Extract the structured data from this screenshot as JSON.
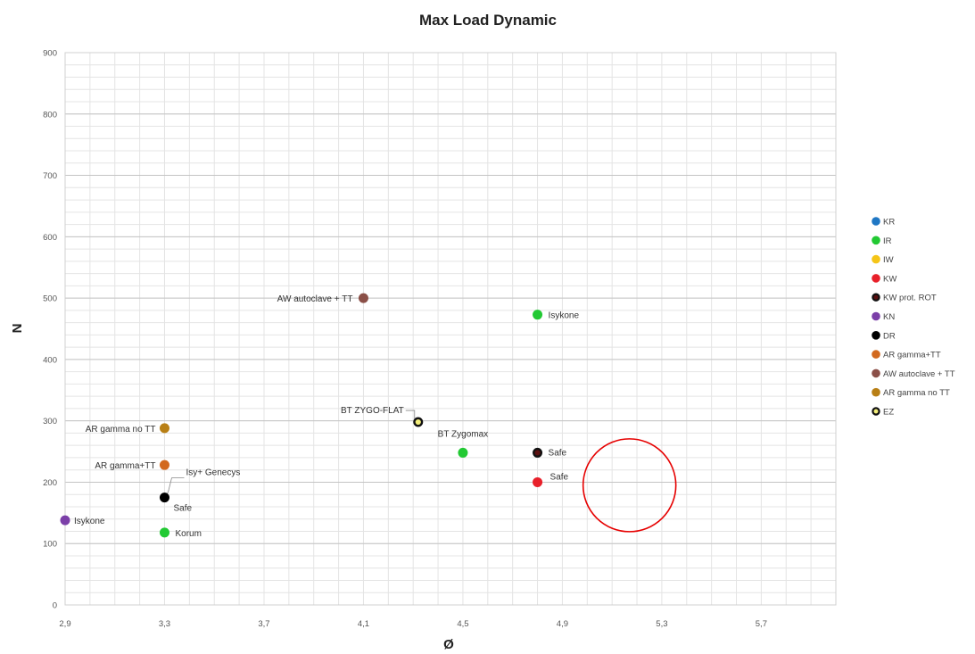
{
  "chart_data": {
    "type": "scatter",
    "title": "Max Load Dynamic",
    "xlabel": "Ø",
    "ylabel": "N",
    "xlim": [
      2.9,
      6.0
    ],
    "ylim": [
      0,
      900
    ],
    "x_ticks": [
      2.9,
      3.3,
      3.7,
      4.1,
      4.5,
      4.9,
      5.3,
      5.7
    ],
    "x_tick_labels": [
      "2,9",
      "3,3",
      "3,7",
      "4,1",
      "4,5",
      "4,9",
      "5,3",
      "5,7"
    ],
    "y_ticks": [
      0,
      100,
      200,
      300,
      400,
      500,
      600,
      700,
      800,
      900
    ],
    "y_tick_labels": [
      "0",
      "100",
      "200",
      "300",
      "400",
      "500",
      "600",
      "700",
      "800",
      "900"
    ],
    "grid": true,
    "legend_position": "right",
    "series": [
      {
        "name": "KR",
        "color": "#1f77c4",
        "ring": null,
        "points": []
      },
      {
        "name": "IR",
        "color": "#22c933",
        "ring": null,
        "points": [
          {
            "x": 4.8,
            "y": 473,
            "label": "Isykone"
          },
          {
            "x": 4.5,
            "y": 248,
            "label": "BT Zygomax"
          },
          {
            "x": 3.3,
            "y": 118,
            "label": "Korum"
          }
        ]
      },
      {
        "name": "IW",
        "color": "#f5c518",
        "ring": null,
        "points": []
      },
      {
        "name": "KW",
        "color": "#e8202a",
        "ring": null,
        "points": [
          {
            "x": 4.8,
            "y": 200,
            "label": "Safe"
          }
        ]
      },
      {
        "name": "KW prot. ROT",
        "color": "#5a1010",
        "ring": "#111111",
        "points": [
          {
            "x": 4.8,
            "y": 248,
            "label": "Safe"
          }
        ]
      },
      {
        "name": "KN",
        "color": "#7b3fa8",
        "ring": null,
        "points": [
          {
            "x": 2.9,
            "y": 138,
            "label": "Isykone"
          }
        ]
      },
      {
        "name": "DR",
        "color": "#000000",
        "ring": null,
        "points": [
          {
            "x": 3.3,
            "y": 175,
            "label": "Safe"
          },
          {
            "x": 3.3,
            "y": 175,
            "label": "Isy+ Genecys"
          }
        ]
      },
      {
        "name": "AR gamma+TT",
        "color": "#d2691e",
        "ring": null,
        "points": [
          {
            "x": 3.3,
            "y": 228,
            "label": "AR gamma+TT"
          }
        ]
      },
      {
        "name": "AW autoclave + TT",
        "color": "#8b5048",
        "ring": null,
        "points": [
          {
            "x": 4.1,
            "y": 500,
            "label": "AW autoclave + TT"
          }
        ]
      },
      {
        "name": "AR gamma no TT",
        "color": "#b87f15",
        "ring": null,
        "points": [
          {
            "x": 3.3,
            "y": 288,
            "label": "AR gamma no TT"
          }
        ]
      },
      {
        "name": "EZ",
        "color": "#f3ee7a",
        "ring": "#111111",
        "points": [
          {
            "x": 4.32,
            "y": 298,
            "label": "BT ZYGO-FLAT"
          }
        ]
      }
    ],
    "annotation": {
      "shape": "circle",
      "color": "#e60000",
      "cx": 5.17,
      "cy": 195
    }
  }
}
